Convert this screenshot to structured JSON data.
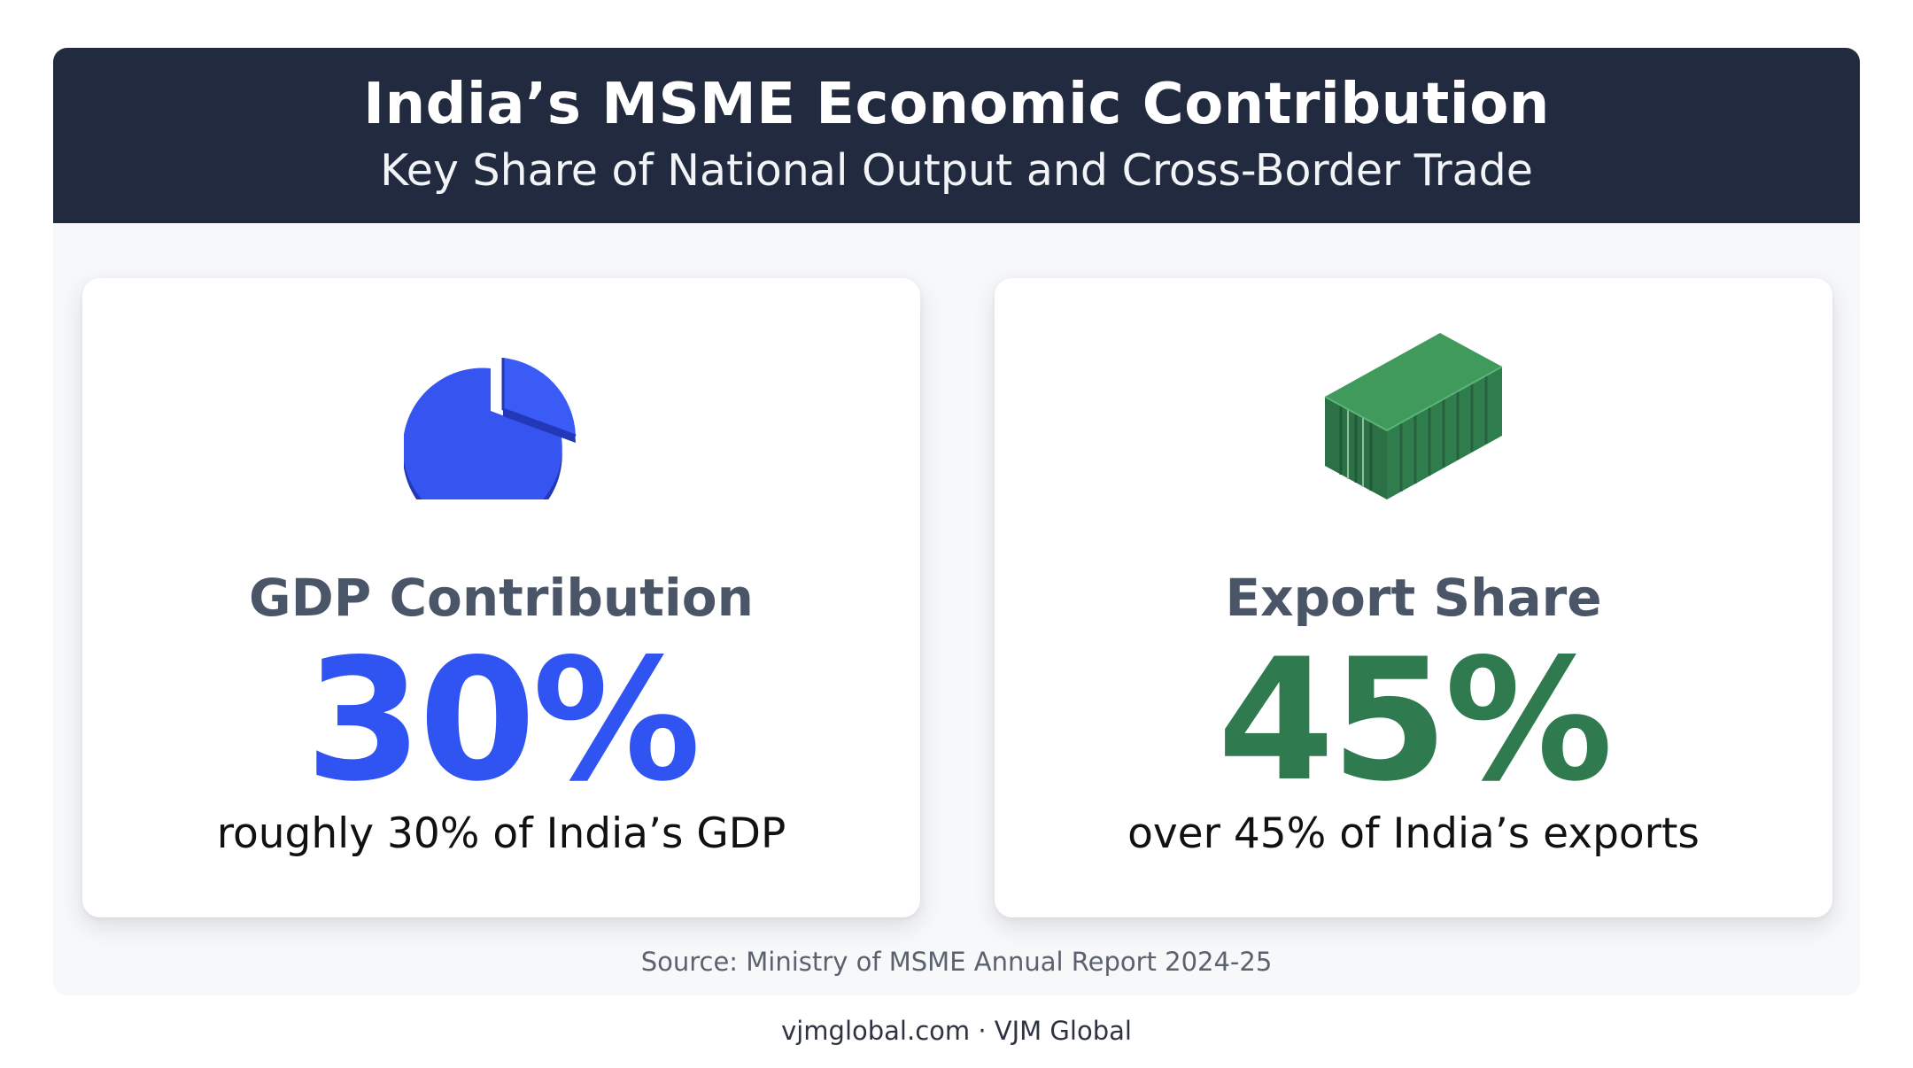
{
  "header": {
    "title": "India’s MSME Economic Contribution",
    "subtitle": "Key Share of National Output and Cross-Border Trade"
  },
  "cards": [
    {
      "icon": "pie-chart-icon",
      "label": "GDP Contribution",
      "value": "30%",
      "description": "roughly 30% of India’s GDP",
      "accent_color": "#2f54f2"
    },
    {
      "icon": "shipping-container-icon",
      "label": "Export Share",
      "value": "45%",
      "description": "over 45% of India’s exports",
      "accent_color": "#2f7a4f"
    }
  ],
  "source": "Source: Ministry of MSME Annual Report 2024-25",
  "footer": "vjmglobal.com · VJM Global",
  "colors": {
    "header_bg": "#222a3f",
    "panel_bg": "#f7f8fa",
    "label_gray": "#4a5568"
  }
}
